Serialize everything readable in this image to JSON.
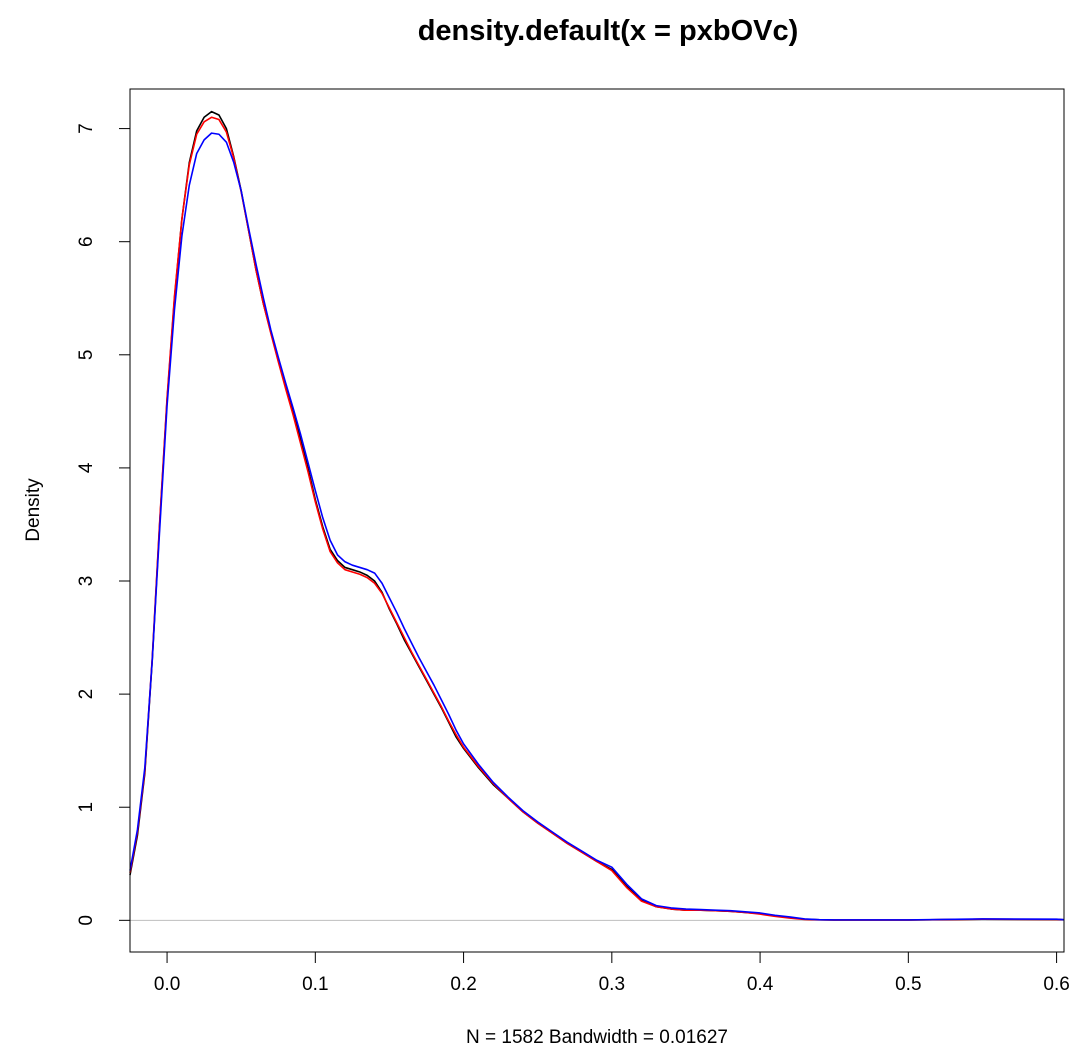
{
  "chart_data": {
    "type": "line",
    "title": "density.default(x = pxbOVc)",
    "xlabel": "N = 1582   Bandwidth = 0.01627",
    "ylabel": "Density",
    "xlim": [
      -0.025,
      0.605
    ],
    "ylim": [
      -0.28,
      7.35
    ],
    "x_ticks": [
      0.0,
      0.1,
      0.2,
      0.3,
      0.4,
      0.5,
      0.6
    ],
    "x_tick_labels": [
      "0.0",
      "0.1",
      "0.2",
      "0.3",
      "0.4",
      "0.5",
      "0.6"
    ],
    "y_ticks": [
      0,
      1,
      2,
      3,
      4,
      5,
      6,
      7
    ],
    "y_tick_labels": [
      "0",
      "1",
      "2",
      "3",
      "4",
      "5",
      "6",
      "7"
    ],
    "grid": false,
    "reference_line": {
      "y": 0,
      "color": "#bebebe"
    },
    "series": [
      {
        "color": "#000000",
        "x": [
          -0.025,
          -0.02,
          -0.015,
          -0.01,
          -0.005,
          0.0,
          0.005,
          0.01,
          0.015,
          0.02,
          0.025,
          0.03,
          0.035,
          0.04,
          0.045,
          0.05,
          0.055,
          0.06,
          0.065,
          0.07,
          0.075,
          0.08,
          0.085,
          0.09,
          0.095,
          0.1,
          0.105,
          0.11,
          0.115,
          0.12,
          0.125,
          0.13,
          0.135,
          0.14,
          0.145,
          0.15,
          0.155,
          0.16,
          0.165,
          0.17,
          0.175,
          0.18,
          0.185,
          0.19,
          0.195,
          0.2,
          0.21,
          0.22,
          0.23,
          0.24,
          0.25,
          0.26,
          0.27,
          0.28,
          0.29,
          0.3,
          0.31,
          0.32,
          0.33,
          0.34,
          0.35,
          0.36,
          0.37,
          0.38,
          0.39,
          0.4,
          0.41,
          0.42,
          0.43,
          0.44,
          0.45,
          0.5,
          0.55,
          0.6,
          0.605
        ],
        "y": [
          0.4,
          0.75,
          1.3,
          2.3,
          3.5,
          4.6,
          5.5,
          6.2,
          6.7,
          6.98,
          7.1,
          7.15,
          7.12,
          7.0,
          6.75,
          6.45,
          6.1,
          5.75,
          5.45,
          5.2,
          4.95,
          4.72,
          4.5,
          4.25,
          4.0,
          3.72,
          3.48,
          3.28,
          3.18,
          3.12,
          3.1,
          3.08,
          3.05,
          3.0,
          2.9,
          2.75,
          2.62,
          2.48,
          2.36,
          2.24,
          2.12,
          2.0,
          1.88,
          1.75,
          1.62,
          1.52,
          1.35,
          1.2,
          1.08,
          0.96,
          0.86,
          0.77,
          0.68,
          0.6,
          0.52,
          0.45,
          0.3,
          0.18,
          0.12,
          0.1,
          0.09,
          0.09,
          0.085,
          0.08,
          0.07,
          0.06,
          0.04,
          0.025,
          0.01,
          0.005,
          0.003,
          0.003,
          0.01,
          0.008,
          0.005
        ]
      },
      {
        "color": "#ff0000",
        "x": [
          -0.025,
          -0.02,
          -0.015,
          -0.01,
          -0.005,
          0.0,
          0.005,
          0.01,
          0.015,
          0.02,
          0.025,
          0.03,
          0.035,
          0.04,
          0.045,
          0.05,
          0.055,
          0.06,
          0.065,
          0.07,
          0.075,
          0.08,
          0.085,
          0.09,
          0.095,
          0.1,
          0.105,
          0.11,
          0.115,
          0.12,
          0.125,
          0.13,
          0.135,
          0.14,
          0.145,
          0.15,
          0.155,
          0.16,
          0.165,
          0.17,
          0.175,
          0.18,
          0.185,
          0.19,
          0.195,
          0.2,
          0.21,
          0.22,
          0.23,
          0.24,
          0.25,
          0.26,
          0.27,
          0.28,
          0.29,
          0.3,
          0.31,
          0.32,
          0.33,
          0.34,
          0.35,
          0.36,
          0.37,
          0.38,
          0.39,
          0.4,
          0.41,
          0.42,
          0.43,
          0.44,
          0.45,
          0.5,
          0.55,
          0.6,
          0.605
        ],
        "y": [
          0.42,
          0.78,
          1.32,
          2.32,
          3.52,
          4.62,
          5.52,
          6.2,
          6.68,
          6.95,
          7.06,
          7.1,
          7.08,
          6.97,
          6.74,
          6.44,
          6.1,
          5.75,
          5.45,
          5.19,
          4.94,
          4.7,
          4.47,
          4.22,
          3.97,
          3.7,
          3.46,
          3.26,
          3.16,
          3.1,
          3.08,
          3.06,
          3.03,
          2.98,
          2.89,
          2.76,
          2.63,
          2.5,
          2.37,
          2.25,
          2.13,
          2.01,
          1.89,
          1.76,
          1.64,
          1.53,
          1.36,
          1.21,
          1.08,
          0.96,
          0.86,
          0.77,
          0.68,
          0.6,
          0.52,
          0.44,
          0.29,
          0.17,
          0.12,
          0.1,
          0.09,
          0.09,
          0.085,
          0.08,
          0.07,
          0.055,
          0.035,
          0.02,
          0.008,
          0.004,
          0.003,
          0.003,
          0.01,
          0.008,
          0.005
        ]
      },
      {
        "color": "#0000ff",
        "x": [
          -0.025,
          -0.02,
          -0.015,
          -0.01,
          -0.005,
          0.0,
          0.005,
          0.01,
          0.015,
          0.02,
          0.025,
          0.03,
          0.035,
          0.04,
          0.045,
          0.05,
          0.055,
          0.06,
          0.065,
          0.07,
          0.075,
          0.08,
          0.085,
          0.09,
          0.095,
          0.1,
          0.105,
          0.11,
          0.115,
          0.12,
          0.125,
          0.13,
          0.135,
          0.14,
          0.145,
          0.15,
          0.155,
          0.16,
          0.165,
          0.17,
          0.175,
          0.18,
          0.185,
          0.19,
          0.195,
          0.2,
          0.21,
          0.22,
          0.23,
          0.24,
          0.25,
          0.26,
          0.27,
          0.28,
          0.29,
          0.3,
          0.31,
          0.32,
          0.33,
          0.34,
          0.35,
          0.36,
          0.37,
          0.38,
          0.39,
          0.4,
          0.41,
          0.42,
          0.43,
          0.44,
          0.45,
          0.5,
          0.55,
          0.6,
          0.605
        ],
        "y": [
          0.44,
          0.8,
          1.35,
          2.3,
          3.45,
          4.55,
          5.4,
          6.05,
          6.5,
          6.78,
          6.9,
          6.96,
          6.95,
          6.88,
          6.7,
          6.45,
          6.12,
          5.8,
          5.5,
          5.22,
          4.98,
          4.75,
          4.53,
          4.3,
          4.05,
          3.8,
          3.56,
          3.36,
          3.23,
          3.17,
          3.14,
          3.12,
          3.1,
          3.07,
          2.98,
          2.85,
          2.72,
          2.58,
          2.45,
          2.32,
          2.2,
          2.08,
          1.95,
          1.82,
          1.68,
          1.56,
          1.38,
          1.22,
          1.09,
          0.97,
          0.87,
          0.78,
          0.69,
          0.61,
          0.53,
          0.47,
          0.32,
          0.19,
          0.13,
          0.11,
          0.1,
          0.095,
          0.09,
          0.085,
          0.075,
          0.065,
          0.045,
          0.03,
          0.012,
          0.006,
          0.004,
          0.004,
          0.012,
          0.01,
          0.006
        ]
      }
    ]
  }
}
